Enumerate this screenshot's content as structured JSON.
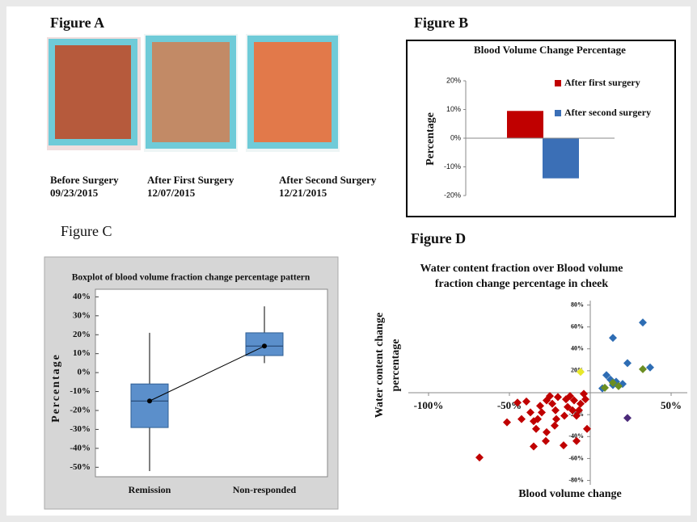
{
  "figure_a": {
    "panel_label": "Figure A",
    "photos": [
      {
        "caption": "Before Surgery",
        "date": "09/23/2015"
      },
      {
        "caption": "After First  Surgery",
        "date": "12/07/2015"
      },
      {
        "caption": "After Second  Surgery",
        "date": "12/21/2015"
      }
    ]
  },
  "chart_data": [
    {
      "type": "bar",
      "panel_label": "Figure B",
      "title": "Blood Volume Change Percentage",
      "y_label": "Percentage",
      "series": [
        {
          "name": "After first surgery",
          "color": "#c00000",
          "values": [
            9.5
          ]
        },
        {
          "name": "After second surgery",
          "color": "#3b6fb6",
          "values": [
            -14
          ]
        }
      ],
      "ylim": [
        -20,
        20
      ],
      "yticks": [
        {
          "value": 20,
          "label": "20%"
        },
        {
          "value": 10,
          "label": "10%"
        },
        {
          "value": 0,
          "label": "0%"
        },
        {
          "value": -10,
          "label": "-10%"
        },
        {
          "value": -20,
          "label": "-20%"
        }
      ]
    },
    {
      "type": "box",
      "panel_label": "Figure C",
      "title": "Boxplot of blood volume fraction change  percentage pattern",
      "y_label": "Percentage",
      "categories": [
        "Remission",
        "Non-responded"
      ],
      "boxes": [
        {
          "min": -52,
          "q1": -29,
          "median": -15,
          "q3": -6,
          "max": 21,
          "mean": -15
        },
        {
          "min": 5,
          "q1": 9,
          "median": 14,
          "q3": 21,
          "max": 35,
          "mean": 14
        }
      ],
      "color": "#5b8fcb",
      "ylim": [
        -55,
        44
      ],
      "yticks": [
        {
          "value": 40,
          "label": "40%"
        },
        {
          "value": 30,
          "label": "30%"
        },
        {
          "value": 20,
          "label": "20%"
        },
        {
          "value": 10,
          "label": "10%"
        },
        {
          "value": 0,
          "label": "0%"
        },
        {
          "value": -10,
          "label": "-10%"
        },
        {
          "value": -20,
          "label": "-20%"
        },
        {
          "value": -30,
          "label": "-30%"
        },
        {
          "value": -40,
          "label": "-40%"
        },
        {
          "value": -50,
          "label": "-50%"
        }
      ]
    },
    {
      "type": "scatter",
      "panel_label": "Figure D",
      "title": [
        "Water content fraction over Blood volume",
        "fraction  change percentage in cheek"
      ],
      "x_label": "Blood volume change",
      "y_label": [
        "Water content change",
        "percentage"
      ],
      "series": [
        {
          "color": "#c00000",
          "x": [
            -68.5,
            -51.5,
            -45,
            -39.5,
            -37,
            -35,
            -32.5,
            -33.5,
            -35,
            -27.5,
            -27,
            -30,
            -27,
            -23.5,
            -21.5,
            -21,
            -22,
            -16.5,
            -15,
            -14,
            -11,
            -10,
            -8.5,
            -6,
            -3,
            -2,
            -4,
            -20,
            -31,
            -8.5,
            -12.5,
            -7,
            -16,
            -25,
            -42.5
          ],
          "values": [
            -59,
            -27,
            -9,
            -8,
            -18,
            -26,
            -24,
            -33,
            -49,
            -44,
            -36,
            -18,
            -7,
            -10,
            -16,
            -24,
            -30,
            -48,
            -6,
            -13,
            -16,
            -7,
            -21,
            -10,
            -6,
            -33,
            -1,
            -4,
            -12,
            -44,
            -3,
            -16,
            -21,
            -3,
            -24
          ]
        },
        {
          "color": "#2e6db4",
          "x": [
            32.5,
            14,
            23,
            37,
            10,
            12.5,
            16,
            20,
            7.5,
            14
          ],
          "values": [
            64,
            50,
            27,
            23,
            16,
            12,
            10,
            8,
            4,
            7
          ]
        },
        {
          "color": "#6b8e23",
          "x": [
            32.5,
            17.5,
            9,
            14
          ],
          "values": [
            21.5,
            6,
            4.5,
            9
          ]
        },
        {
          "color": "#e8e82a",
          "x": [
            -6
          ],
          "values": [
            19
          ]
        },
        {
          "color": "#4b2a7a",
          "x": [
            23
          ],
          "values": [
            -23
          ]
        }
      ],
      "xlim": [
        -112.5,
        60
      ],
      "ylim": [
        -84,
        84
      ],
      "xticks": [
        {
          "value": -100,
          "label": "-100%"
        },
        {
          "value": -50,
          "label": "-50%"
        },
        {
          "value": 50,
          "label": "50%"
        }
      ],
      "yticks": [
        {
          "value": 80,
          "label": "80%"
        },
        {
          "value": 60,
          "label": "60%"
        },
        {
          "value": 40,
          "label": "40%"
        },
        {
          "value": 20,
          "label": "20%"
        },
        {
          "value": -20,
          "label": "-20%"
        },
        {
          "value": -40,
          "label": "-40%"
        },
        {
          "value": -60,
          "label": "-60%"
        },
        {
          "value": -80,
          "label": "-80%"
        }
      ]
    }
  ]
}
